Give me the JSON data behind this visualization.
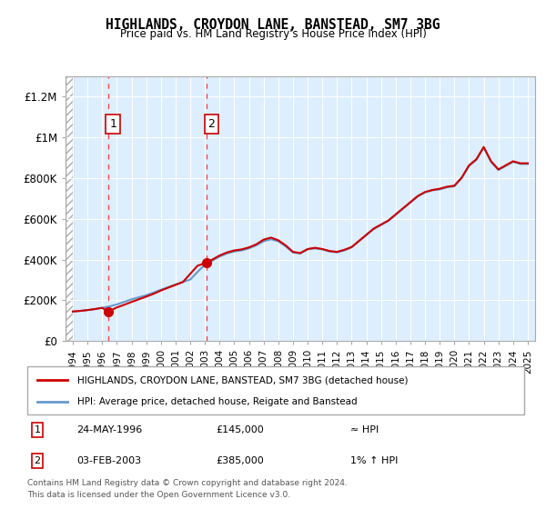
{
  "title": "HIGHLANDS, CROYDON LANE, BANSTEAD, SM7 3BG",
  "subtitle": "Price paid vs. HM Land Registry's House Price Index (HPI)",
  "xlim": [
    1993.5,
    2025.5
  ],
  "ylim": [
    0,
    1300000
  ],
  "yticks": [
    0,
    200000,
    400000,
    600000,
    800000,
    1000000,
    1200000
  ],
  "ytick_labels": [
    "£0",
    "£200K",
    "£400K",
    "£600K",
    "£800K",
    "£1M",
    "£1.2M"
  ],
  "xticks": [
    1994,
    1995,
    1996,
    1997,
    1998,
    1999,
    2000,
    2001,
    2002,
    2003,
    2004,
    2005,
    2006,
    2007,
    2008,
    2009,
    2010,
    2011,
    2012,
    2013,
    2014,
    2015,
    2016,
    2017,
    2018,
    2019,
    2020,
    2021,
    2022,
    2023,
    2024,
    2025
  ],
  "sale_dates": [
    1996.39,
    2003.09
  ],
  "sale_prices": [
    145000,
    385000
  ],
  "sale_labels": [
    "1",
    "2"
  ],
  "hpi_line_color": "#6699cc",
  "price_line_color": "#cc0000",
  "sale_dot_color": "#cc0000",
  "annotation_line_color": "#ff4444",
  "legend_label_price": "HIGHLANDS, CROYDON LANE, BANSTEAD, SM7 3BG (detached house)",
  "legend_label_hpi": "HPI: Average price, detached house, Reigate and Banstead",
  "sale_info": [
    {
      "label": "1",
      "date": "24-MAY-1996",
      "price": "£145,000",
      "hpi_rel": "≈ HPI"
    },
    {
      "label": "2",
      "date": "03-FEB-2003",
      "price": "£385,000",
      "hpi_rel": "1% ↑ HPI"
    }
  ],
  "footer": "Contains HM Land Registry data © Crown copyright and database right 2024.\nThis data is licensed under the Open Government Licence v3.0.",
  "bg_hatch_color": "#cccccc",
  "bg_plot_color": "#ddeeff",
  "hpi_data_x": [
    1994,
    1994.5,
    1995,
    1995.5,
    1996,
    1996.5,
    1997,
    1997.5,
    1998,
    1998.5,
    1999,
    1999.5,
    2000,
    2000.5,
    2001,
    2001.5,
    2002,
    2002.5,
    2003,
    2003.5,
    2004,
    2004.5,
    2005,
    2005.5,
    2006,
    2006.5,
    2007,
    2007.5,
    2008,
    2008.5,
    2009,
    2009.5,
    2010,
    2010.5,
    2011,
    2011.5,
    2012,
    2012.5,
    2013,
    2013.5,
    2014,
    2014.5,
    2015,
    2015.5,
    2016,
    2016.5,
    2017,
    2017.5,
    2018,
    2018.5,
    2019,
    2019.5,
    2020,
    2020.5,
    2021,
    2021.5,
    2022,
    2022.5,
    2023,
    2023.5,
    2024,
    2024.5,
    2025
  ],
  "hpi_data_y": [
    145000,
    148000,
    152000,
    157000,
    163000,
    170000,
    180000,
    192000,
    205000,
    215000,
    225000,
    238000,
    252000,
    265000,
    278000,
    290000,
    302000,
    340000,
    375000,
    395000,
    415000,
    430000,
    440000,
    445000,
    455000,
    470000,
    490000,
    500000,
    490000,
    465000,
    435000,
    430000,
    450000,
    455000,
    450000,
    440000,
    435000,
    445000,
    460000,
    490000,
    520000,
    550000,
    570000,
    590000,
    620000,
    650000,
    680000,
    710000,
    730000,
    740000,
    745000,
    755000,
    760000,
    800000,
    860000,
    890000,
    950000,
    880000,
    840000,
    860000,
    880000,
    870000,
    870000
  ],
  "price_data_x": [
    1994,
    1994.5,
    1995,
    1995.5,
    1996,
    1996.39,
    1996.5,
    1997,
    1997.5,
    1998,
    1998.5,
    1999,
    1999.5,
    2000,
    2000.5,
    2001,
    2001.5,
    2002,
    2002.5,
    2003,
    2003.09,
    2003.5,
    2004,
    2004.5,
    2005,
    2005.5,
    2006,
    2006.5,
    2007,
    2007.5,
    2008,
    2008.5,
    2009,
    2009.5,
    2010,
    2010.5,
    2011,
    2011.5,
    2012,
    2012.5,
    2013,
    2013.5,
    2014,
    2014.5,
    2015,
    2015.5,
    2016,
    2016.5,
    2017,
    2017.5,
    2018,
    2018.5,
    2019,
    2019.5,
    2020,
    2020.5,
    2021,
    2021.5,
    2022,
    2022.5,
    2023,
    2023.5,
    2024,
    2024.5,
    2025
  ],
  "price_data_y": [
    145000,
    148000,
    152000,
    157000,
    163000,
    145000,
    148000,
    165000,
    178000,
    192000,
    205000,
    218000,
    232000,
    248000,
    262000,
    276000,
    290000,
    330000,
    370000,
    382000,
    385000,
    400000,
    420000,
    435000,
    445000,
    450000,
    460000,
    475000,
    498000,
    508000,
    495000,
    470000,
    438000,
    432000,
    452000,
    458000,
    452000,
    442000,
    438000,
    448000,
    462000,
    492000,
    522000,
    552000,
    572000,
    592000,
    622000,
    652000,
    682000,
    712000,
    732000,
    742000,
    748000,
    758000,
    763000,
    803000,
    863000,
    893000,
    953000,
    883000,
    843000,
    863000,
    883000,
    873000,
    873000
  ]
}
